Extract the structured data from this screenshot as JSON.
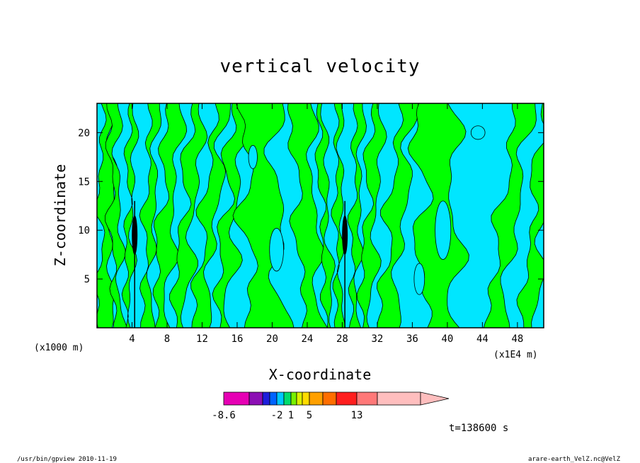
{
  "chart_data": {
    "type": "heatmap",
    "title": "vertical velocity",
    "xlabel": "X-coordinate",
    "ylabel": "Z-coordinate",
    "x_unit_left": "(x1000 m)",
    "x_unit_right": "(x1E4 m)",
    "xlim": [
      0,
      51
    ],
    "ylim": [
      0,
      23
    ],
    "x_ticks": [
      "4",
      "8",
      "12",
      "16",
      "20",
      "24",
      "28",
      "32",
      "36",
      "40",
      "44",
      "48"
    ],
    "y_ticks": [
      "5",
      "10",
      "15",
      "20"
    ],
    "x_tick_values": [
      4,
      8,
      12,
      16,
      20,
      24,
      28,
      32,
      36,
      40,
      44,
      48
    ],
    "y_tick_values": [
      5,
      10,
      15,
      20
    ],
    "colorbar": {
      "labels": [
        "-8.6",
        "-2",
        "1",
        "5",
        "13"
      ],
      "colors": [
        "#e600b4",
        "#8c0fb4",
        "#1e1edc",
        "#0064ff",
        "#00c8ff",
        "#00dc6e",
        "#78f000",
        "#dcf000",
        "#ffdc00",
        "#ffa000",
        "#ff6e00",
        "#ff1e1e",
        "#ff7878",
        "#ffbebe"
      ],
      "extend": "max"
    },
    "dominant_levels": {
      "negative": "#00e6ff",
      "positive": "#00ff00",
      "strong": "#000000"
    },
    "grid": false
  },
  "time_label": "t=138600 s",
  "footer_left": "/usr/bin/gpview  2010-11-19",
  "footer_right": "arare-earth_VelZ.nc@VelZ"
}
